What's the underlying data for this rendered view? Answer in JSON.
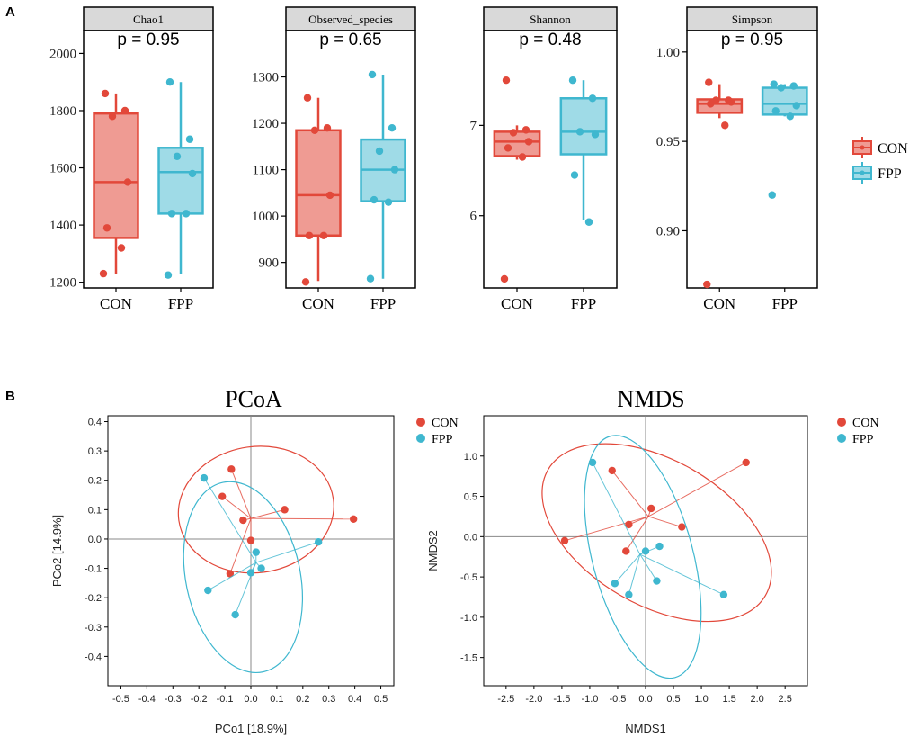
{
  "panel_a_label": "A",
  "panel_b_label": "B",
  "legend": [
    {
      "name": "CON",
      "color": "#e2483a",
      "fill": "#ef9b93"
    },
    {
      "name": "FPP",
      "color": "#3fb7cf",
      "fill": "#9fdbe7"
    }
  ],
  "chart_data": [
    {
      "type": "box",
      "title": "Chao1",
      "pvalue": "p = 0.95",
      "categories": [
        "CON",
        "FPP"
      ],
      "ylim": [
        1180,
        2080
      ],
      "yticks": [
        "1200",
        "1400",
        "1600",
        "1800",
        "2000"
      ],
      "boxes": [
        {
          "group": "CON",
          "whisker_low": 1230,
          "q1": 1355,
          "median": 1550,
          "q3": 1790,
          "whisker_high": 1860
        },
        {
          "group": "FPP",
          "whisker_low": 1230,
          "q1": 1440,
          "median": 1585,
          "q3": 1670,
          "whisker_high": 1900
        }
      ],
      "points": [
        {
          "group": "CON",
          "values": [
            1860,
            1800,
            1780,
            1550,
            1390,
            1320,
            1230
          ]
        },
        {
          "group": "FPP",
          "values": [
            1900,
            1700,
            1640,
            1580,
            1440,
            1440,
            1225
          ]
        }
      ]
    },
    {
      "type": "box",
      "title": "Observed_species",
      "pvalue": "p = 0.65",
      "categories": [
        "CON",
        "FPP"
      ],
      "ylim": [
        845,
        1400
      ],
      "yticks": [
        "900",
        "1000",
        "1100",
        "1200",
        "1300"
      ],
      "boxes": [
        {
          "group": "CON",
          "whisker_low": 860,
          "q1": 958,
          "median": 1045,
          "q3": 1185,
          "whisker_high": 1255
        },
        {
          "group": "FPP",
          "whisker_low": 865,
          "q1": 1032,
          "median": 1100,
          "q3": 1165,
          "whisker_high": 1305
        }
      ],
      "points": [
        {
          "group": "CON",
          "values": [
            1255,
            1190,
            1185,
            1045,
            958,
            958,
            858
          ]
        },
        {
          "group": "FPP",
          "values": [
            1305,
            1190,
            1140,
            1100,
            1035,
            1030,
            865
          ]
        }
      ]
    },
    {
      "type": "box",
      "title": "Shannon",
      "pvalue": "p = 0.48",
      "categories": [
        "CON",
        "FPP"
      ],
      "ylim": [
        5.2,
        8.05
      ],
      "yticks": [
        "6",
        "7"
      ],
      "boxes": [
        {
          "group": "CON",
          "whisker_low": 6.62,
          "q1": 6.66,
          "median": 6.82,
          "q3": 6.93,
          "whisker_high": 7.0
        },
        {
          "group": "FPP",
          "whisker_low": 5.95,
          "q1": 6.68,
          "median": 6.93,
          "q3": 7.3,
          "whisker_high": 7.5
        }
      ],
      "points": [
        {
          "group": "CON",
          "values": [
            7.5,
            6.95,
            6.92,
            6.82,
            6.75,
            6.65,
            5.3
          ]
        },
        {
          "group": "FPP",
          "values": [
            7.5,
            7.3,
            6.93,
            6.9,
            6.45,
            5.93
          ]
        }
      ]
    },
    {
      "type": "box",
      "title": "Simpson",
      "pvalue": "p = 0.95",
      "categories": [
        "CON",
        "FPP"
      ],
      "ylim": [
        0.868,
        1.012
      ],
      "yticks": [
        "0.90",
        "0.95",
        "1.00"
      ],
      "boxes": [
        {
          "group": "CON",
          "whisker_low": 0.963,
          "q1": 0.966,
          "median": 0.971,
          "q3": 0.9735,
          "whisker_high": 0.982
        },
        {
          "group": "FPP",
          "whisker_low": 0.964,
          "q1": 0.965,
          "median": 0.971,
          "q3": 0.98,
          "whisker_high": 0.982
        }
      ],
      "points": [
        {
          "group": "CON",
          "values": [
            0.983,
            0.973,
            0.973,
            0.972,
            0.971,
            0.959,
            0.87
          ]
        },
        {
          "group": "FPP",
          "values": [
            0.982,
            0.981,
            0.98,
            0.97,
            0.967,
            0.964,
            0.92
          ]
        }
      ]
    },
    {
      "type": "scatter",
      "title": "PCoA",
      "xlabel": "PCo1 [18.9%]",
      "ylabel": "PCo2 [14.9%]",
      "xlim": [
        -0.55,
        0.55
      ],
      "ylim": [
        -0.5,
        0.42
      ],
      "xticks": [
        "-0.5",
        "-0.4",
        "-0.3",
        "-0.2",
        "-0.1",
        "0.0",
        "0.1",
        "0.2",
        "0.3",
        "0.4",
        "0.5"
      ],
      "yticks": [
        "-0.4",
        "-0.3",
        "-0.2",
        "-0.1",
        "0.0",
        "0.1",
        "0.2",
        "0.3",
        "0.4"
      ],
      "series": [
        {
          "name": "CON",
          "centroid": [
            0.0,
            0.07
          ],
          "ellipse": {
            "cx": 0.02,
            "cy": 0.1,
            "rx": 0.3,
            "ry": 0.215,
            "angle": -8
          },
          "x": [
            -0.075,
            -0.11,
            -0.03,
            0.13,
            0.395,
            0.0,
            -0.08
          ],
          "y": [
            0.238,
            0.145,
            0.064,
            0.1,
            0.068,
            -0.005,
            -0.118
          ]
        },
        {
          "name": "FPP",
          "centroid": [
            0.02,
            -0.08
          ],
          "ellipse": {
            "cx": -0.03,
            "cy": -0.13,
            "rx": 0.22,
            "ry": 0.33,
            "angle": -12
          },
          "x": [
            -0.18,
            0.26,
            0.02,
            0.04,
            0.0,
            -0.165,
            -0.06
          ],
          "y": [
            0.208,
            -0.01,
            -0.045,
            -0.1,
            -0.115,
            -0.175,
            -0.258
          ]
        }
      ]
    },
    {
      "type": "scatter",
      "title": "NMDS",
      "xlabel": "NMDS1",
      "ylabel": "NMDS2",
      "xlim": [
        -2.9,
        2.9
      ],
      "ylim": [
        -1.85,
        1.5
      ],
      "xticks": [
        "-2.5",
        "-2.0",
        "-1.5",
        "-1.0",
        "-0.5",
        "0.0",
        "0.5",
        "1.0",
        "1.5",
        "2.0",
        "2.5"
      ],
      "yticks": [
        "-1.5",
        "-1.0",
        "-0.5",
        "0.0",
        "0.5",
        "1.0"
      ],
      "series": [
        {
          "name": "CON",
          "centroid": [
            0.05,
            0.25
          ],
          "ellipse": {
            "cx": 0.2,
            "cy": 0.05,
            "rx": 2.25,
            "ry": 0.9,
            "angle": 30
          },
          "x": [
            1.8,
            -0.6,
            0.1,
            -0.3,
            0.65,
            -1.45,
            -0.35
          ],
          "y": [
            0.92,
            0.82,
            0.35,
            0.15,
            0.12,
            -0.05,
            -0.18
          ]
        },
        {
          "name": "FPP",
          "centroid": [
            -0.1,
            -0.22
          ],
          "ellipse": {
            "cx": -0.05,
            "cy": -0.25,
            "rx": 0.9,
            "ry": 1.55,
            "angle": -15
          },
          "x": [
            -0.95,
            0.0,
            0.25,
            -0.55,
            0.2,
            -0.3,
            1.4
          ],
          "y": [
            0.92,
            -0.18,
            -0.12,
            -0.58,
            -0.55,
            -0.72,
            -0.72
          ]
        }
      ]
    }
  ]
}
